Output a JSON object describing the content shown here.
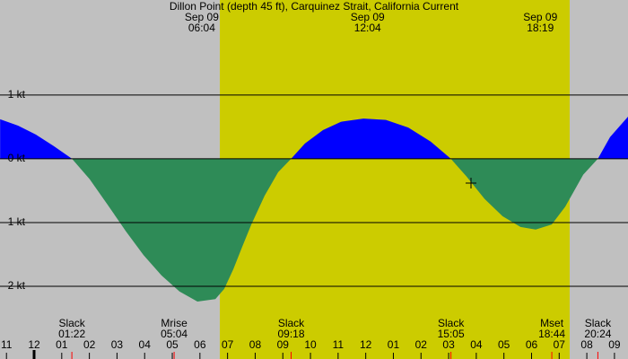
{
  "chart_data": {
    "type": "area",
    "title": "Dillon Point (depth 45 ft), Carquinez Strait, California Current",
    "sun_labels": [
      {
        "date": "Sep 09",
        "time": "06:04"
      },
      {
        "date": "Sep 09",
        "time": "12:04"
      },
      {
        "date": "Sep 09",
        "time": "18:19"
      }
    ],
    "events": [
      {
        "label": "Slack",
        "time": "01:22"
      },
      {
        "label": "Mrise",
        "time": "05:04"
      },
      {
        "label": "Slack",
        "time": "09:18"
      },
      {
        "label": "Slack",
        "time": "15:05"
      },
      {
        "label": "Mset",
        "time": "18:44"
      },
      {
        "label": "Slack",
        "time": "20:24"
      }
    ],
    "x": [
      -1.23,
      -0.58,
      0.06,
      0.71,
      1.37,
      2.01,
      2.66,
      3.31,
      3.96,
      4.61,
      5.26,
      5.91,
      6.56,
      6.88,
      7.21,
      7.53,
      7.86,
      8.34,
      8.83,
      9.3,
      9.8,
      10.45,
      11.1,
      11.92,
      12.73,
      13.54,
      14.35,
      15.08,
      15.65,
      16.3,
      16.95,
      17.6,
      18.15,
      18.73,
      19.22,
      19.87,
      20.4,
      20.84,
      21.49
    ],
    "values": [
      0.62,
      0.52,
      0.38,
      0.2,
      0,
      -0.32,
      -0.72,
      -1.13,
      -1.51,
      -1.83,
      -2.08,
      -2.24,
      -2.2,
      -2.04,
      -1.73,
      -1.38,
      -1.03,
      -0.58,
      -0.21,
      0,
      0.24,
      0.45,
      0.58,
      0.63,
      0.61,
      0.49,
      0.27,
      0,
      -0.28,
      -0.63,
      -0.9,
      -1.07,
      -1.11,
      -1.03,
      -0.75,
      -0.25,
      0,
      0.34,
      0.66
    ],
    "flood_color": "#0000ff",
    "ebb_color": "#2e8b57",
    "xlim": [
      -1.234,
      21.49
    ],
    "ylim": [
      -3.14,
      2.49
    ],
    "xticks": [
      {
        "value": -1,
        "label": "11"
      },
      {
        "value": 0,
        "label": "12"
      },
      {
        "value": 1,
        "label": "01"
      },
      {
        "value": 2,
        "label": "02"
      },
      {
        "value": 3,
        "label": "03"
      },
      {
        "value": 4,
        "label": "04"
      },
      {
        "value": 5,
        "label": "05"
      },
      {
        "value": 6,
        "label": "06"
      },
      {
        "value": 7,
        "label": "07"
      },
      {
        "value": 8,
        "label": "08"
      },
      {
        "value": 9,
        "label": "09"
      },
      {
        "value": 10,
        "label": "10"
      },
      {
        "value": 11,
        "label": "11"
      },
      {
        "value": 12,
        "label": "12"
      },
      {
        "value": 13,
        "label": "01"
      },
      {
        "value": 14,
        "label": "02"
      },
      {
        "value": 15,
        "label": "03"
      },
      {
        "value": 16,
        "label": "04"
      },
      {
        "value": 17,
        "label": "05"
      },
      {
        "value": 18,
        "label": "06"
      },
      {
        "value": 19,
        "label": "07"
      },
      {
        "value": 20,
        "label": "08"
      },
      {
        "value": 21,
        "label": "09"
      }
    ],
    "yticks": [
      {
        "value": 1,
        "label": "1 kt"
      },
      {
        "value": 0,
        "label": "0 kt"
      },
      {
        "value": -1,
        "label": "-1 kt"
      },
      {
        "value": -2,
        "label": "-2 kt"
      }
    ]
  }
}
